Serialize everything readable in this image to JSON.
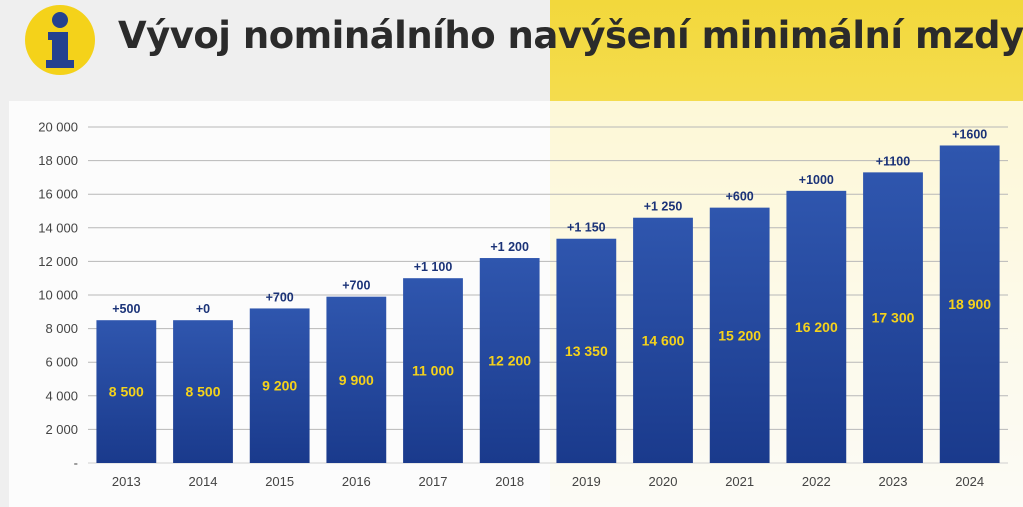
{
  "header": {
    "title": "Vývoj nominálního navýšení minimální mzdy",
    "logo_icon": "info-icon"
  },
  "colors": {
    "bar_top": "#2f56ae",
    "bar_bottom": "#1a3a8c",
    "increment_text": "#1b3378",
    "value_text": "#f5d21b",
    "logo_yellow": "#f4d21a",
    "logo_blue": "#24418f"
  },
  "chart_data": {
    "type": "bar",
    "title": "Vývoj nominálního navýšení minimální mzdy",
    "categories": [
      "2013",
      "2014",
      "2015",
      "2016",
      "2017",
      "2018",
      "2019",
      "2020",
      "2021",
      "2022",
      "2023",
      "2024"
    ],
    "values": [
      8500,
      8500,
      9200,
      9900,
      11000,
      12200,
      13350,
      14600,
      15200,
      16200,
      17300,
      18900
    ],
    "value_labels": [
      "8 500",
      "8 500",
      "9 200",
      "9 900",
      "11 000",
      "12 200",
      "13 350",
      "14 600",
      "15 200",
      "16 200",
      "17 300",
      "18 900"
    ],
    "increment_labels": [
      "+500",
      "+0",
      "+700",
      "+700",
      "+1 100",
      "+1 200",
      "+1 150",
      "+1 250",
      "+600",
      "+1000",
      "+1100",
      "+1600"
    ],
    "y_ticks": [
      "-",
      "2 000",
      "4 000",
      "6 000",
      "8 000",
      "10 000",
      "12 000",
      "14 000",
      "16 000",
      "18 000",
      "20 000"
    ],
    "ylim": [
      0,
      20000
    ],
    "grid": true,
    "legend": "none"
  }
}
